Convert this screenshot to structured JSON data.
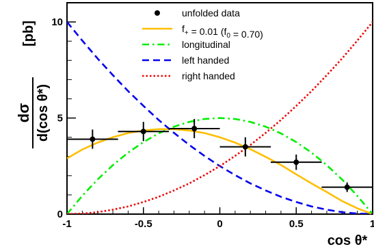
{
  "chart_data": {
    "type": "line",
    "xlabel": "cos θ*",
    "ylabel": {
      "numerator": "dσ",
      "denominator": "d(cos θ*)",
      "unit": "[pb]"
    },
    "xlim": [
      -1,
      1
    ],
    "ylim": [
      0,
      11
    ],
    "x_ticks": [
      -1,
      -0.5,
      0,
      0.5,
      1
    ],
    "x_tick_labels": [
      "-1",
      "-0.5",
      "0",
      "0.5",
      "1"
    ],
    "y_ticks": [
      0,
      5,
      10
    ],
    "y_tick_labels": [
      "0",
      "5",
      "10"
    ],
    "grid": false,
    "legend_position": "top-right",
    "series": [
      {
        "name": "unfolded data",
        "kind": "points",
        "color": "#000000",
        "x": [
          -0.833,
          -0.5,
          -0.167,
          0.167,
          0.5,
          0.833
        ],
        "xerr": [
          0.167,
          0.167,
          0.167,
          0.167,
          0.167,
          0.167
        ],
        "y": [
          3.9,
          4.3,
          4.45,
          3.5,
          2.7,
          1.4
        ],
        "yerr": [
          0.5,
          0.5,
          0.5,
          0.5,
          0.4,
          0.25
        ]
      },
      {
        "name": "f+ = 0.01 (f0 = 0.70)",
        "legend_main": "f",
        "legend_sub": "+",
        "legend_rest": " = 0.01 (f",
        "legend_sub2": "0",
        "legend_end": " = 0.70)",
        "kind": "curve",
        "color": "#ffbe00",
        "dash": "solid",
        "x": [
          -1,
          -0.9,
          -0.8,
          -0.7,
          -0.6,
          -0.5,
          -0.4,
          -0.3,
          -0.2,
          -0.1,
          0,
          0.1,
          0.2,
          0.3,
          0.4,
          0.5,
          0.6,
          0.7,
          0.8,
          0.9,
          1
        ],
        "y": [
          2.9,
          3.36,
          3.72,
          4.0,
          4.22,
          4.35,
          4.42,
          4.42,
          4.35,
          4.22,
          4.0,
          3.72,
          3.38,
          2.98,
          2.56,
          2.07,
          1.6,
          1.15,
          0.68,
          0.3,
          0.0
        ]
      },
      {
        "name": "longitudinal",
        "kind": "curve",
        "color": "#00ee00",
        "dash": "dashdot",
        "x": [
          -1,
          -0.9,
          -0.8,
          -0.7,
          -0.6,
          -0.5,
          -0.4,
          -0.3,
          -0.2,
          -0.1,
          0,
          0.1,
          0.2,
          0.3,
          0.4,
          0.5,
          0.6,
          0.7,
          0.8,
          0.9,
          1
        ],
        "y": [
          0.0,
          0.95,
          1.8,
          2.55,
          3.2,
          3.75,
          4.2,
          4.55,
          4.8,
          4.95,
          5.0,
          4.95,
          4.8,
          4.55,
          4.2,
          3.75,
          3.2,
          2.55,
          1.8,
          0.95,
          0.0
        ]
      },
      {
        "name": "left handed",
        "kind": "curve",
        "color": "#0000ee",
        "dash": "dashed",
        "x": [
          -1,
          -0.9,
          -0.8,
          -0.7,
          -0.6,
          -0.5,
          -0.4,
          -0.3,
          -0.2,
          -0.1,
          0,
          0.1,
          0.2,
          0.3,
          0.4,
          0.5,
          0.6,
          0.7,
          0.8,
          0.9,
          1
        ],
        "y": [
          10.0,
          9.03,
          8.1,
          7.23,
          6.4,
          5.63,
          4.9,
          4.23,
          3.6,
          3.03,
          2.5,
          2.03,
          1.6,
          1.23,
          0.9,
          0.63,
          0.4,
          0.23,
          0.1,
          0.03,
          0.0
        ]
      },
      {
        "name": "right handed",
        "kind": "curve",
        "color": "#ee0000",
        "dash": "dotted",
        "x": [
          -1,
          -0.9,
          -0.8,
          -0.7,
          -0.6,
          -0.5,
          -0.4,
          -0.3,
          -0.2,
          -0.1,
          0,
          0.1,
          0.2,
          0.3,
          0.4,
          0.5,
          0.6,
          0.7,
          0.8,
          0.9,
          1
        ],
        "y": [
          0.0,
          0.03,
          0.1,
          0.23,
          0.4,
          0.63,
          0.9,
          1.23,
          1.6,
          2.03,
          2.5,
          3.03,
          3.6,
          4.23,
          4.9,
          5.63,
          6.4,
          7.23,
          8.1,
          9.03,
          10.0
        ]
      }
    ]
  }
}
